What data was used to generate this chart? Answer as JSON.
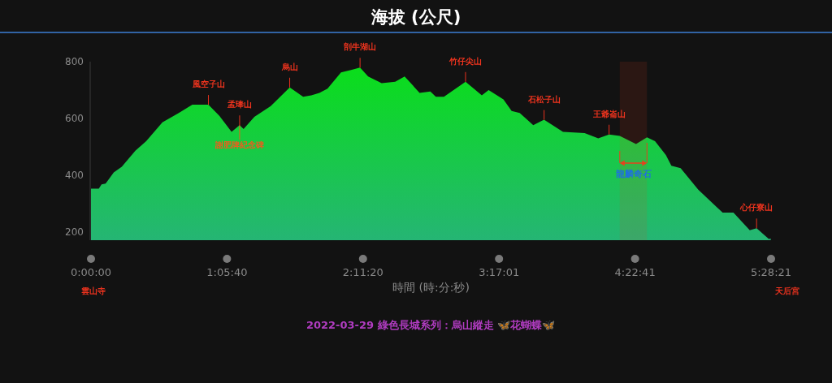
{
  "chart_data": {
    "type": "area",
    "title": "海拔 (公尺)",
    "xlabel": "時間 (時:分:秒)",
    "xlim": [
      0,
      5.4725
    ],
    "ylim": [
      170,
      800
    ],
    "yticks": [
      200,
      400,
      600,
      800
    ],
    "xticks": [
      {
        "value": 0,
        "label": "0:00:00"
      },
      {
        "value": 1.0944,
        "label": "1:05:40"
      },
      {
        "value": 2.1889,
        "label": "2:11:20"
      },
      {
        "value": 3.2836,
        "label": "3:17:01"
      },
      {
        "value": 4.3781,
        "label": "4:22:41"
      },
      {
        "value": 5.4725,
        "label": "5:28:21"
      }
    ],
    "grid": false,
    "x": [
      0,
      0.063,
      0.085,
      0.118,
      0.183,
      0.248,
      0.357,
      0.444,
      0.575,
      0.706,
      0.815,
      0.945,
      1.033,
      1.131,
      1.196,
      1.228,
      1.315,
      1.446,
      1.599,
      1.707,
      1.773,
      1.838,
      1.903,
      2.012,
      2.099,
      2.165,
      2.23,
      2.339,
      2.448,
      2.524,
      2.644,
      2.731,
      2.775,
      2.84,
      3.014,
      3.145,
      3.2,
      3.319,
      3.385,
      3.45,
      3.559,
      3.646,
      3.798,
      3.972,
      4.082,
      4.169,
      4.255,
      4.386,
      4.474,
      4.539,
      4.626,
      4.67,
      4.745,
      4.887,
      5.083,
      5.17,
      5.301,
      5.356,
      5.454,
      5.47
    ],
    "series": [
      {
        "color": "#0ade1a",
        "values": [
          352,
          352,
          367,
          370,
          409,
          429,
          486,
          519,
          586,
          619,
          648,
          648,
          609,
          552,
          576,
          562,
          605,
          643,
          709,
          676,
          681,
          690,
          705,
          762,
          771,
          779,
          748,
          724,
          729,
          748,
          690,
          695,
          676,
          676,
          729,
          681,
          700,
          667,
          626,
          619,
          576,
          595,
          552,
          548,
          529,
          543,
          538,
          509,
          533,
          519,
          471,
          433,
          424,
          348,
          267,
          267,
          205,
          212,
          174,
          176
        ]
      }
    ],
    "bands": [
      {
        "axis": "x",
        "from": 4.255,
        "to": 4.474,
        "label": "龍麟奇石",
        "color": "#e8401e"
      }
    ],
    "annotations": [
      {
        "text": "風空子山",
        "x": 0.945,
        "y": 648
      },
      {
        "text": "孟琫山",
        "x": 1.196,
        "y": 576
      },
      {
        "text": "謝肥牌紀念碑",
        "x": 1.196,
        "y": 576
      },
      {
        "text": "烏山",
        "x": 1.599,
        "y": 709
      },
      {
        "text": "剖牛湖山",
        "x": 2.165,
        "y": 779
      },
      {
        "text": "竹仔尖山",
        "x": 3.014,
        "y": 729
      },
      {
        "text": "石松子山",
        "x": 3.646,
        "y": 595
      },
      {
        "text": "王爺崙山",
        "x": 4.169,
        "y": 543
      },
      {
        "text": "心仔寮山",
        "x": 5.356,
        "y": 212
      },
      "雲山寺",
      "天后宮",
      "2022-03-29 綠色長城系列：烏山縱走 🦋花蝴蝶🦋"
    ]
  }
}
